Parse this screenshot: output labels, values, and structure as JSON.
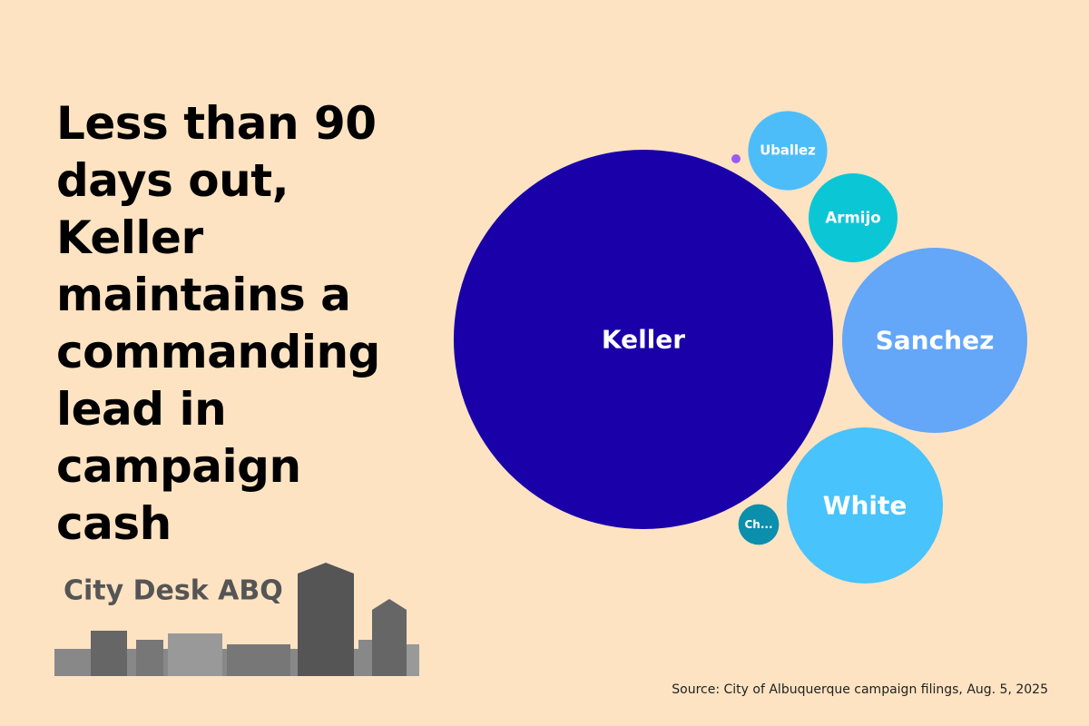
{
  "chart_data": {
    "type": "bubble",
    "title": "Less than 90 days out, Keller maintains a commanding lead in campaign cash",
    "categories": [
      "Keller",
      "Uballez",
      "Armijo",
      "Sanchez",
      "White",
      "Ch...",
      null
    ],
    "values": [
      437,
      19,
      24,
      104,
      74,
      5,
      0.25
    ],
    "colors": [
      "#1a00a8",
      "#4dbdfa",
      "#0bc7d6",
      "#64a6f8",
      "#48c3fb",
      "#0b8fad",
      "#9b59f5"
    ],
    "source": "Source: City of Albuquerque campaign filings, Aug. 5, 2025"
  },
  "logo": {
    "text": "City Desk ABQ"
  }
}
